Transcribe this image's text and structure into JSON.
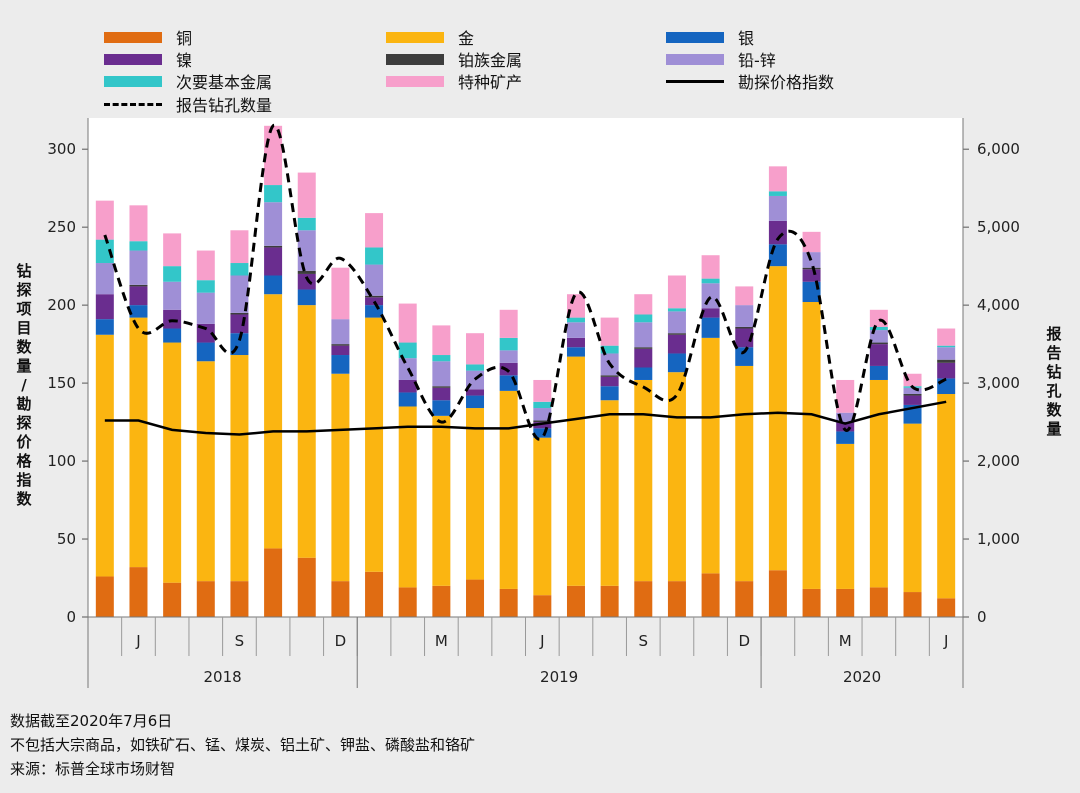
{
  "legend": {
    "copper": "铜",
    "gold": "金",
    "silver": "银",
    "nickel": "镍",
    "pgm": "铂族金属",
    "lead_zinc": "铅-锌",
    "secondary": "次要基本金属",
    "specialty": "特种矿产",
    "index": "勘探价格指数",
    "holes": "报告钻孔数量"
  },
  "colors": {
    "copper": "#e06c12",
    "gold": "#fbb511",
    "silver": "#1565c0",
    "nickel": "#6a2d8f",
    "pgm": "#3d3d3d",
    "lead_zinc": "#9f8fd6",
    "secondary": "#33c6c9",
    "specialty": "#f79fcb",
    "index": "#000000",
    "holes": "#000000",
    "plot_bg": "#ffffff",
    "page_bg": "#ececec"
  },
  "notes": {
    "line1": "数据截至2020年7月6日",
    "line2": "不包括大宗商品，如铁矿石、锰、煤炭、铝土矿、钾盐、磷酸盐和铬矿",
    "line3": "来源：标普全球市场财智"
  },
  "chart_data": {
    "type": "bar",
    "stacked": true,
    "ylabel_left": "钻探项目数量/勘探价格指数",
    "ylabel_right": "报告钻孔数量",
    "ylim_left": [
      0,
      320
    ],
    "ylim_right": [
      0,
      6400
    ],
    "yticks_left": [
      "0",
      "50",
      "100",
      "150",
      "200",
      "250",
      "300"
    ],
    "yticks_right": [
      "0",
      "1,000",
      "2,000",
      "3,000",
      "4,000",
      "5,000",
      "6,000"
    ],
    "month_labels": [
      "",
      "J",
      "",
      "",
      "S",
      "",
      "",
      "D",
      "",
      "",
      "M",
      "",
      "",
      "J",
      "",
      "",
      "S",
      "",
      "",
      "D",
      "",
      "",
      "M",
      "",
      "",
      "J"
    ],
    "year_labels": [
      {
        "label": "2018",
        "start": 0,
        "end": 8
      },
      {
        "label": "2019",
        "start": 8,
        "end": 20
      },
      {
        "label": "2020",
        "start": 20,
        "end": 26
      }
    ],
    "series": [
      {
        "key": "copper",
        "values": [
          26,
          32,
          22,
          23,
          23,
          44,
          38,
          23,
          29,
          19,
          20,
          24,
          18,
          14,
          20,
          20,
          23,
          23,
          28,
          23,
          30,
          18,
          18,
          19,
          16,
          12
        ]
      },
      {
        "key": "gold",
        "values": [
          155,
          160,
          154,
          141,
          145,
          163,
          162,
          133,
          163,
          116,
          109,
          110,
          127,
          101,
          147,
          119,
          129,
          134,
          151,
          138,
          195,
          184,
          93,
          133,
          108,
          131
        ]
      },
      {
        "key": "silver",
        "values": [
          10,
          8,
          9,
          12,
          14,
          12,
          10,
          12,
          8,
          9,
          10,
          8,
          10,
          6,
          6,
          9,
          8,
          12,
          13,
          12,
          14,
          13,
          8,
          9,
          12,
          10
        ]
      },
      {
        "key": "nickel",
        "values": [
          16,
          12,
          12,
          12,
          12,
          18,
          10,
          6,
          5,
          8,
          8,
          4,
          8,
          4,
          6,
          6,
          12,
          12,
          6,
          12,
          15,
          8,
          6,
          14,
          6,
          10
        ]
      },
      {
        "key": "pgm",
        "values": [
          0,
          1,
          0,
          0,
          1,
          1,
          2,
          1,
          1,
          0,
          1,
          0,
          0,
          1,
          0,
          1,
          1,
          1,
          0,
          1,
          0,
          1,
          0,
          1,
          1,
          2
        ]
      },
      {
        "key": "lead_zinc",
        "values": [
          20,
          22,
          18,
          20,
          24,
          28,
          26,
          16,
          20,
          14,
          16,
          12,
          8,
          8,
          10,
          14,
          16,
          14,
          16,
          14,
          16,
          10,
          6,
          8,
          4,
          8
        ]
      },
      {
        "key": "secondary",
        "values": [
          15,
          6,
          10,
          8,
          8,
          11,
          8,
          0,
          11,
          10,
          4,
          4,
          8,
          4,
          3,
          5,
          5,
          2,
          3,
          0,
          3,
          0,
          0,
          2,
          1,
          1
        ]
      },
      {
        "key": "specialty",
        "values": [
          25,
          23,
          21,
          19,
          21,
          38,
          29,
          33,
          22,
          25,
          19,
          20,
          18,
          14,
          15,
          18,
          13,
          21,
          15,
          12,
          16,
          13,
          21,
          11,
          8,
          11
        ]
      }
    ],
    "index_values": [
      126,
      126,
      120,
      118,
      117,
      119,
      119,
      120,
      121,
      122,
      122,
      121,
      121,
      124,
      127,
      130,
      130,
      128,
      128,
      130,
      131,
      130,
      124,
      130,
      134,
      138
    ],
    "drill_holes": [
      4900,
      3700,
      3800,
      3700,
      3550,
      6300,
      4350,
      4600,
      4050,
      3200,
      2500,
      3050,
      3150,
      2300,
      4150,
      3250,
      2950,
      2850,
      4100,
      3400,
      4850,
      4550,
      2400,
      3800,
      2950,
      3050
    ]
  }
}
